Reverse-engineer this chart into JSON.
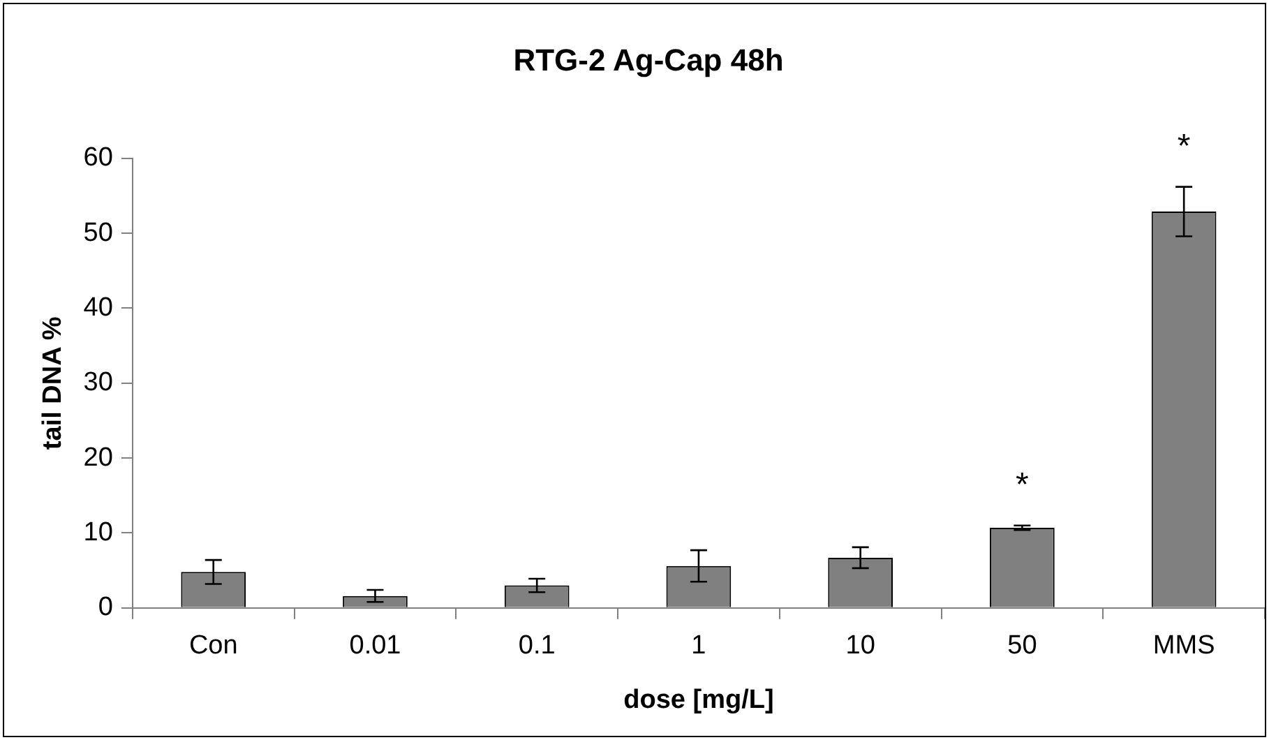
{
  "chart_data": {
    "type": "bar",
    "title": "RTG-2 Ag-Cap 48h",
    "xlabel": "dose [mg/L]",
    "ylabel": "tail DNA %",
    "categories": [
      "Con",
      "0.01",
      "0.1",
      "1",
      "10",
      "50",
      "MMS"
    ],
    "values": [
      4.8,
      1.6,
      3.0,
      5.6,
      6.7,
      10.7,
      52.9
    ],
    "errors": [
      1.6,
      0.8,
      0.9,
      2.1,
      1.4,
      0.3,
      3.3
    ],
    "color": "#808080",
    "ylim": [
      0,
      60
    ],
    "yticks": [
      0,
      10,
      20,
      30,
      40,
      50,
      60
    ],
    "grid": false,
    "legend": false,
    "annotations": [
      {
        "text": "*",
        "x": "50",
        "y": 10.7
      },
      {
        "text": "*",
        "x": "MMS",
        "y": 52.9
      }
    ]
  }
}
